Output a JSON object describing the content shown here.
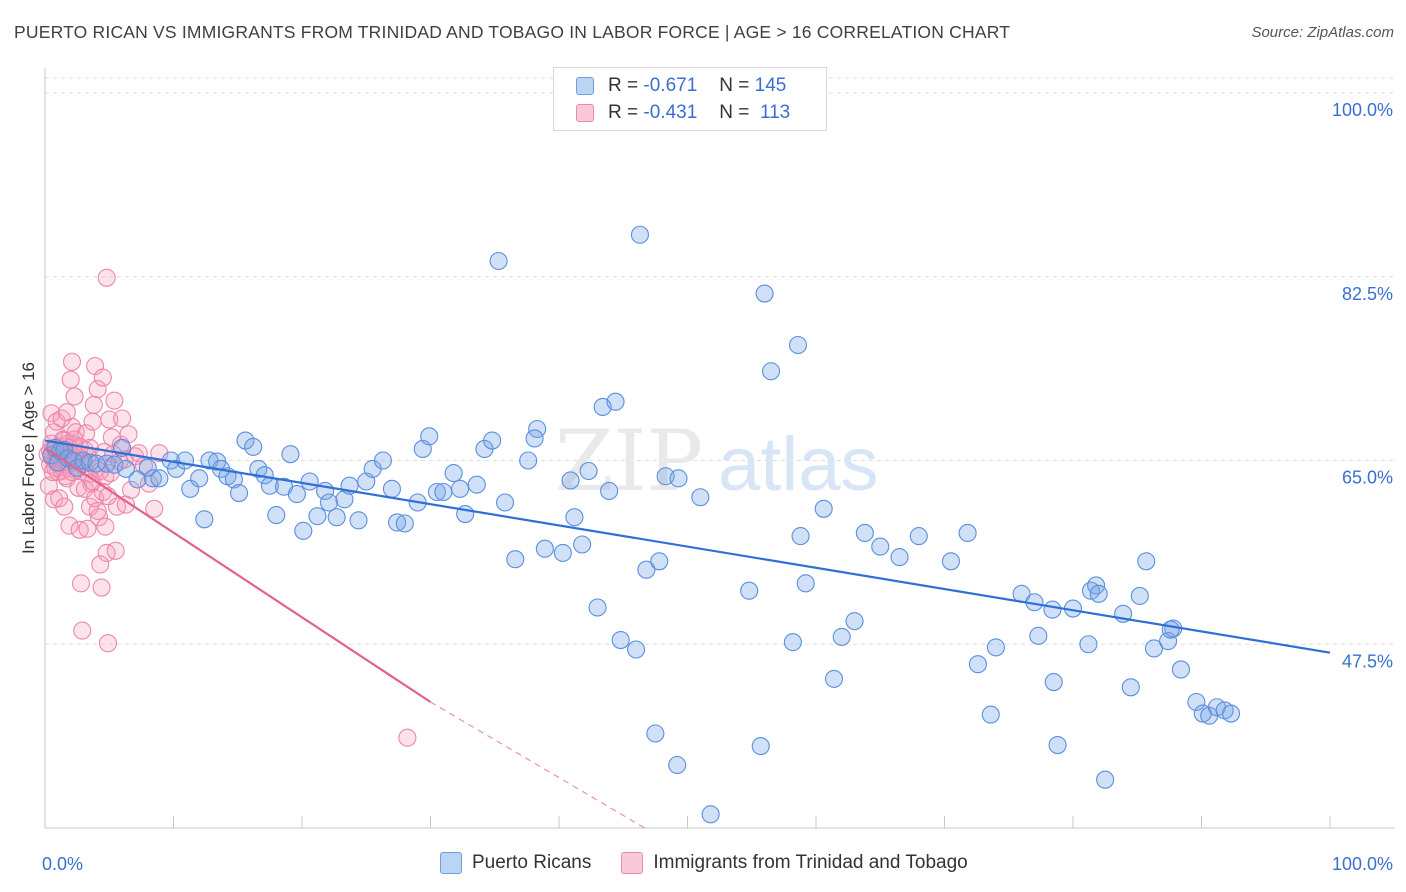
{
  "header": {
    "title": "PUERTO RICAN VS IMMIGRANTS FROM TRINIDAD AND TOBAGO IN LABOR FORCE | AGE > 16 CORRELATION CHART",
    "source": "Source: ZipAtlas.com"
  },
  "watermark": {
    "zip": "ZIP",
    "atlas": "atlas"
  },
  "legend": {
    "rows": [
      {
        "r_label": "R =",
        "r_value": "-0.671",
        "n_label": "N =",
        "n_value": "145",
        "color": "#a9c8f0",
        "border": "#6f9fe0"
      },
      {
        "r_label": "R =",
        "r_value": "-0.431",
        "n_label": "N =",
        "n_value": "113",
        "color": "#f7b9cd",
        "border": "#e98aa8"
      }
    ]
  },
  "bottom_legend": {
    "series_a": "Puerto Ricans",
    "series_b": "Immigrants from Trinidad and Tobago"
  },
  "colors": {
    "blue_fill": "rgba(120,165,230,0.35)",
    "blue_stroke": "#5b8fdc",
    "blue_line": "#2f6fd6",
    "pink_fill": "rgba(245,160,190,0.30)",
    "pink_stroke": "#ee86a9",
    "pink_line": "#e2628e",
    "tick_text": "#3a6fd0",
    "grid": "#dedede"
  },
  "chart_data": {
    "type": "scatter",
    "title": "PUERTO RICAN VS IMMIGRANTS FROM TRINIDAD AND TOBAGO IN LABOR FORCE | AGE > 16 CORRELATION CHART",
    "xlabel": "",
    "ylabel": "In Labor Force | Age > 16",
    "xlim": [
      0,
      100
    ],
    "ylim": [
      30,
      102
    ],
    "x_tick_labels": [
      "0.0%",
      "100.0%"
    ],
    "y_ticks": [
      47.5,
      65.0,
      82.5,
      100.0
    ],
    "y_tick_labels": [
      "47.5%",
      "65.0%",
      "82.5%",
      "100.0%"
    ],
    "grid": true,
    "legend_position": "top-center",
    "series": [
      {
        "name": "Puerto Ricans",
        "r": -0.671,
        "n": 145,
        "trend": {
          "x": [
            0,
            100
          ],
          "y": [
            66.9,
            46.7
          ]
        },
        "points": [
          [
            0.5,
            65.5
          ],
          [
            0.8,
            66.2
          ],
          [
            1.0,
            64.8
          ],
          [
            1.2,
            65.9
          ],
          [
            1.5,
            66.0
          ],
          [
            1.8,
            65.2
          ],
          [
            2.2,
            65.0
          ],
          [
            2.5,
            64.3
          ],
          [
            3.0,
            65.0
          ],
          [
            3.5,
            64.8
          ],
          [
            4.0,
            64.7
          ],
          [
            4.8,
            64.7
          ],
          [
            5.4,
            64.6
          ],
          [
            6.0,
            66.2
          ],
          [
            6.3,
            64.2
          ],
          [
            7.2,
            63.2
          ],
          [
            8.0,
            64.3
          ],
          [
            8.4,
            63.3
          ],
          [
            8.9,
            63.3
          ],
          [
            9.8,
            65.0
          ],
          [
            10.2,
            64.2
          ],
          [
            10.9,
            65.0
          ],
          [
            11.3,
            62.3
          ],
          [
            12.0,
            63.3
          ],
          [
            12.4,
            59.4
          ],
          [
            12.8,
            65.0
          ],
          [
            13.4,
            64.9
          ],
          [
            13.7,
            64.2
          ],
          [
            14.2,
            63.5
          ],
          [
            14.7,
            63.2
          ],
          [
            15.1,
            61.9
          ],
          [
            15.6,
            66.9
          ],
          [
            16.2,
            66.3
          ],
          [
            16.6,
            64.2
          ],
          [
            17.1,
            63.6
          ],
          [
            17.5,
            62.6
          ],
          [
            18.0,
            59.8
          ],
          [
            18.6,
            62.5
          ],
          [
            19.1,
            65.6
          ],
          [
            19.6,
            61.8
          ],
          [
            20.1,
            58.3
          ],
          [
            20.6,
            63.0
          ],
          [
            21.2,
            59.7
          ],
          [
            21.8,
            62.1
          ],
          [
            22.1,
            61.0
          ],
          [
            22.7,
            59.6
          ],
          [
            23.3,
            61.3
          ],
          [
            23.7,
            62.6
          ],
          [
            24.4,
            59.3
          ],
          [
            25.0,
            63.0
          ],
          [
            25.5,
            64.2
          ],
          [
            26.3,
            65.0
          ],
          [
            27.0,
            62.3
          ],
          [
            27.4,
            59.1
          ],
          [
            28.0,
            59.0
          ],
          [
            29.0,
            61.0
          ],
          [
            29.4,
            66.1
          ],
          [
            29.9,
            67.3
          ],
          [
            30.5,
            62.0
          ],
          [
            31.0,
            62.0
          ],
          [
            31.8,
            63.8
          ],
          [
            32.3,
            62.3
          ],
          [
            32.7,
            59.9
          ],
          [
            33.6,
            62.7
          ],
          [
            34.2,
            66.1
          ],
          [
            34.8,
            66.9
          ],
          [
            35.3,
            84.0
          ],
          [
            35.8,
            61.0
          ],
          [
            36.6,
            55.6
          ],
          [
            37.6,
            65.0
          ],
          [
            38.3,
            68.0
          ],
          [
            38.9,
            56.6
          ],
          [
            38.1,
            67.1
          ],
          [
            40.3,
            56.2
          ],
          [
            40.9,
            63.1
          ],
          [
            41.2,
            59.6
          ],
          [
            41.8,
            57.0
          ],
          [
            42.3,
            64.0
          ],
          [
            43.0,
            51.0
          ],
          [
            43.4,
            70.1
          ],
          [
            43.9,
            62.1
          ],
          [
            44.4,
            70.6
          ],
          [
            44.8,
            47.9
          ],
          [
            46.0,
            47.0
          ],
          [
            46.3,
            86.5
          ],
          [
            46.8,
            54.6
          ],
          [
            47.8,
            55.4
          ],
          [
            47.5,
            39.0
          ],
          [
            48.3,
            63.5
          ],
          [
            49.3,
            63.3
          ],
          [
            49.2,
            36.0
          ],
          [
            51.0,
            61.5
          ],
          [
            51.8,
            31.3
          ],
          [
            54.8,
            52.6
          ],
          [
            55.7,
            37.8
          ],
          [
            56.0,
            80.9
          ],
          [
            56.5,
            73.5
          ],
          [
            58.2,
            47.7
          ],
          [
            58.6,
            76.0
          ],
          [
            58.8,
            57.8
          ],
          [
            59.2,
            53.3
          ],
          [
            60.6,
            60.4
          ],
          [
            61.4,
            44.2
          ],
          [
            62.0,
            48.2
          ],
          [
            63.0,
            49.7
          ],
          [
            63.8,
            58.1
          ],
          [
            65.0,
            56.8
          ],
          [
            66.5,
            55.8
          ],
          [
            68.0,
            57.8
          ],
          [
            70.5,
            55.4
          ],
          [
            71.8,
            58.1
          ],
          [
            72.6,
            45.6
          ],
          [
            73.6,
            40.8
          ],
          [
            74.0,
            47.2
          ],
          [
            76.0,
            52.3
          ],
          [
            77.0,
            51.5
          ],
          [
            77.3,
            48.3
          ],
          [
            78.4,
            50.8
          ],
          [
            78.5,
            43.9
          ],
          [
            78.8,
            37.9
          ],
          [
            80.0,
            50.9
          ],
          [
            81.2,
            47.5
          ],
          [
            81.4,
            52.6
          ],
          [
            81.8,
            53.1
          ],
          [
            82.0,
            52.3
          ],
          [
            82.5,
            34.6
          ],
          [
            83.9,
            50.4
          ],
          [
            84.5,
            43.4
          ],
          [
            85.2,
            52.1
          ],
          [
            85.7,
            55.4
          ],
          [
            86.3,
            47.1
          ],
          [
            87.4,
            47.8
          ],
          [
            87.8,
            49.0
          ],
          [
            87.6,
            48.9
          ],
          [
            88.4,
            45.1
          ],
          [
            89.6,
            42.0
          ],
          [
            90.1,
            40.9
          ],
          [
            90.6,
            40.7
          ],
          [
            91.2,
            41.5
          ],
          [
            91.8,
            41.2
          ],
          [
            92.3,
            40.9
          ]
        ]
      },
      {
        "name": "Immigrants from Trinidad and Tobago",
        "r": -0.431,
        "n": 113,
        "trend": {
          "x": [
            0,
            30
          ],
          "y": [
            66.2,
            42.0
          ],
          "dashed_x": [
            30,
            55
          ],
          "dashed_y": [
            42.0,
            24.0
          ]
        },
        "points": [
          [
            0.2,
            65.6
          ],
          [
            0.4,
            64.6
          ],
          [
            0.5,
            66.6
          ],
          [
            0.6,
            65.2
          ],
          [
            0.7,
            67.7
          ],
          [
            0.8,
            64.9
          ],
          [
            0.9,
            65.3
          ],
          [
            1.0,
            63.9
          ],
          [
            1.1,
            66.0
          ],
          [
            1.2,
            65.3
          ],
          [
            1.3,
            64.4
          ],
          [
            1.4,
            67.0
          ],
          [
            1.5,
            65.9
          ],
          [
            1.6,
            63.5
          ],
          [
            1.7,
            64.9
          ],
          [
            1.8,
            66.6
          ],
          [
            1.9,
            65.6
          ],
          [
            2.0,
            64.2
          ],
          [
            2.1,
            68.2
          ],
          [
            2.2,
            65.0
          ],
          [
            0.3,
            62.6
          ],
          [
            0.5,
            69.5
          ],
          [
            0.7,
            61.3
          ],
          [
            0.9,
            68.7
          ],
          [
            1.1,
            61.4
          ],
          [
            1.3,
            69.0
          ],
          [
            1.5,
            60.6
          ],
          [
            1.7,
            69.6
          ],
          [
            1.9,
            58.8
          ],
          [
            2.0,
            72.7
          ],
          [
            2.1,
            74.4
          ],
          [
            2.3,
            71.1
          ],
          [
            2.4,
            67.7
          ],
          [
            2.5,
            64.1
          ],
          [
            2.6,
            62.4
          ],
          [
            2.7,
            58.4
          ],
          [
            2.8,
            53.3
          ],
          [
            2.9,
            48.8
          ],
          [
            3.0,
            64.9
          ],
          [
            3.1,
            66.0
          ],
          [
            3.2,
            67.6
          ],
          [
            3.3,
            65.4
          ],
          [
            3.4,
            63.7
          ],
          [
            3.5,
            60.6
          ],
          [
            3.6,
            62.8
          ],
          [
            3.7,
            68.7
          ],
          [
            3.8,
            70.3
          ],
          [
            3.9,
            74.0
          ],
          [
            4.0,
            64.2
          ],
          [
            4.1,
            71.8
          ],
          [
            4.2,
            59.6
          ],
          [
            4.3,
            55.1
          ],
          [
            4.4,
            52.9
          ],
          [
            4.5,
            72.9
          ],
          [
            4.6,
            65.8
          ],
          [
            4.7,
            63.5
          ],
          [
            4.8,
            56.2
          ],
          [
            4.9,
            47.6
          ],
          [
            5.0,
            68.9
          ],
          [
            5.1,
            63.8
          ],
          [
            5.2,
            67.2
          ],
          [
            5.3,
            65.6
          ],
          [
            5.4,
            70.7
          ],
          [
            5.5,
            56.4
          ],
          [
            5.6,
            60.6
          ],
          [
            5.8,
            64.9
          ],
          [
            5.9,
            66.5
          ],
          [
            6.0,
            69.0
          ],
          [
            6.2,
            65.1
          ],
          [
            6.3,
            60.8
          ],
          [
            6.5,
            67.5
          ],
          [
            6.7,
            62.2
          ],
          [
            7.0,
            65.4
          ],
          [
            7.3,
            65.7
          ],
          [
            7.7,
            64.5
          ],
          [
            8.1,
            62.8
          ],
          [
            8.5,
            60.4
          ],
          [
            8.9,
            65.7
          ],
          [
            4.8,
            82.4
          ],
          [
            28.2,
            38.6
          ],
          [
            0.6,
            66.1
          ],
          [
            0.8,
            64.3
          ],
          [
            1.0,
            66.3
          ],
          [
            1.2,
            64.8
          ],
          [
            1.4,
            65.7
          ],
          [
            1.6,
            66.3
          ],
          [
            1.8,
            64.6
          ],
          [
            2.0,
            65.8
          ],
          [
            2.2,
            66.5
          ],
          [
            2.4,
            65.2
          ],
          [
            0.4,
            65.9
          ],
          [
            0.6,
            63.9
          ],
          [
            0.9,
            65.7
          ],
          [
            1.1,
            65.1
          ],
          [
            1.3,
            64.0
          ],
          [
            1.5,
            66.9
          ],
          [
            1.7,
            63.3
          ],
          [
            1.9,
            66.2
          ],
          [
            2.1,
            63.9
          ],
          [
            2.3,
            67.0
          ],
          [
            2.5,
            65.7
          ],
          [
            2.7,
            66.3
          ],
          [
            2.9,
            64.6
          ],
          [
            3.1,
            62.3
          ],
          [
            3.3,
            58.5
          ],
          [
            3.5,
            66.2
          ],
          [
            3.7,
            63.0
          ],
          [
            3.9,
            61.4
          ],
          [
            4.1,
            60.2
          ],
          [
            4.3,
            64.0
          ],
          [
            4.5,
            62.0
          ],
          [
            4.7,
            58.7
          ],
          [
            4.9,
            61.6
          ]
        ]
      }
    ]
  }
}
